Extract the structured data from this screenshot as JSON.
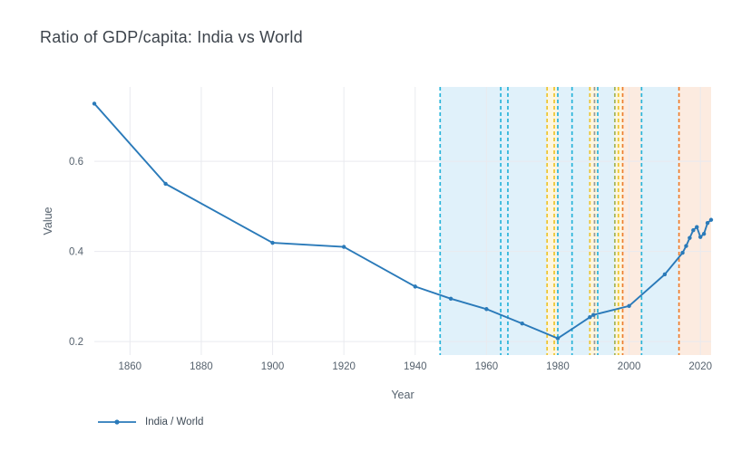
{
  "title": "Ratio of GDP/capita: India vs World",
  "colors": {
    "background": "#ffffff",
    "grid": "#e9eaef",
    "tick_text": "#56626e",
    "axis_title_text": "#56626e",
    "title_text": "#3c434b",
    "legend_text": "#3f4b57"
  },
  "legend": {
    "label": "India / World"
  },
  "chart_data": {
    "type": "line",
    "title": "Ratio of GDP/capita: India vs World",
    "xlabel": "Year",
    "ylabel": "Value",
    "xlim": [
      1850,
      2023
    ],
    "ylim": [
      0.17,
      0.765
    ],
    "xticks": [
      1860,
      1880,
      1900,
      1920,
      1940,
      1960,
      1980,
      2000,
      2020
    ],
    "yticks": [
      0.2,
      0.4,
      0.6
    ],
    "grid": true,
    "legend_position": "bottom-left",
    "series": [
      {
        "name": "India / World",
        "color": "#2a7ab9",
        "x": [
          1850,
          1870,
          1900,
          1920,
          1940,
          1950,
          1960,
          1970,
          1980,
          1989,
          1990,
          2000,
          2010,
          2015,
          2016,
          2017,
          2018,
          2019,
          2020,
          2021,
          2022,
          2023
        ],
        "y": [
          0.728,
          0.55,
          0.419,
          0.41,
          0.322,
          0.295,
          0.272,
          0.24,
          0.207,
          0.254,
          0.259,
          0.279,
          0.349,
          0.397,
          0.412,
          0.43,
          0.447,
          0.454,
          0.432,
          0.439,
          0.463,
          0.47
        ]
      }
    ],
    "bands": [
      {
        "start": 1947,
        "end": 1977,
        "color": "#e0f1fa"
      },
      {
        "start": 1977,
        "end": 1980,
        "color": "#fdf6df"
      },
      {
        "start": 1980,
        "end": 1989,
        "color": "#e0f1fa"
      },
      {
        "start": 1989,
        "end": 1991.2,
        "color": "#fdf6df"
      },
      {
        "start": 1991.2,
        "end": 1996,
        "color": "#e0f1fa"
      },
      {
        "start": 1996,
        "end": 1998.2,
        "color": "#fdf6df"
      },
      {
        "start": 1998.2,
        "end": 2003.5,
        "color": "#fcebe0"
      },
      {
        "start": 2003.5,
        "end": 2014,
        "color": "#e0f1fa"
      },
      {
        "start": 2014,
        "end": 2023,
        "color": "#fcebe0"
      }
    ],
    "vlines": [
      {
        "year": 1947,
        "color": "#29b4da"
      },
      {
        "year": 1964,
        "color": "#29b4da"
      },
      {
        "year": 1966,
        "color": "#29b4da"
      },
      {
        "year": 1977,
        "color": "#eec42a"
      },
      {
        "year": 1979,
        "color": "#eec42a"
      },
      {
        "year": 1980,
        "color": "#29b4da"
      },
      {
        "year": 1984,
        "color": "#29b4da"
      },
      {
        "year": 1989,
        "color": "#eec42a"
      },
      {
        "year": 1990.3,
        "color": "#9a9a9a"
      },
      {
        "year": 1991.2,
        "color": "#29b4da"
      },
      {
        "year": 1996,
        "color": "#a2b556"
      },
      {
        "year": 1997,
        "color": "#eec42a"
      },
      {
        "year": 1998.2,
        "color": "#ee7f2f"
      },
      {
        "year": 2003.5,
        "color": "#29b4da"
      },
      {
        "year": 2014,
        "color": "#ee7f2f"
      }
    ]
  }
}
